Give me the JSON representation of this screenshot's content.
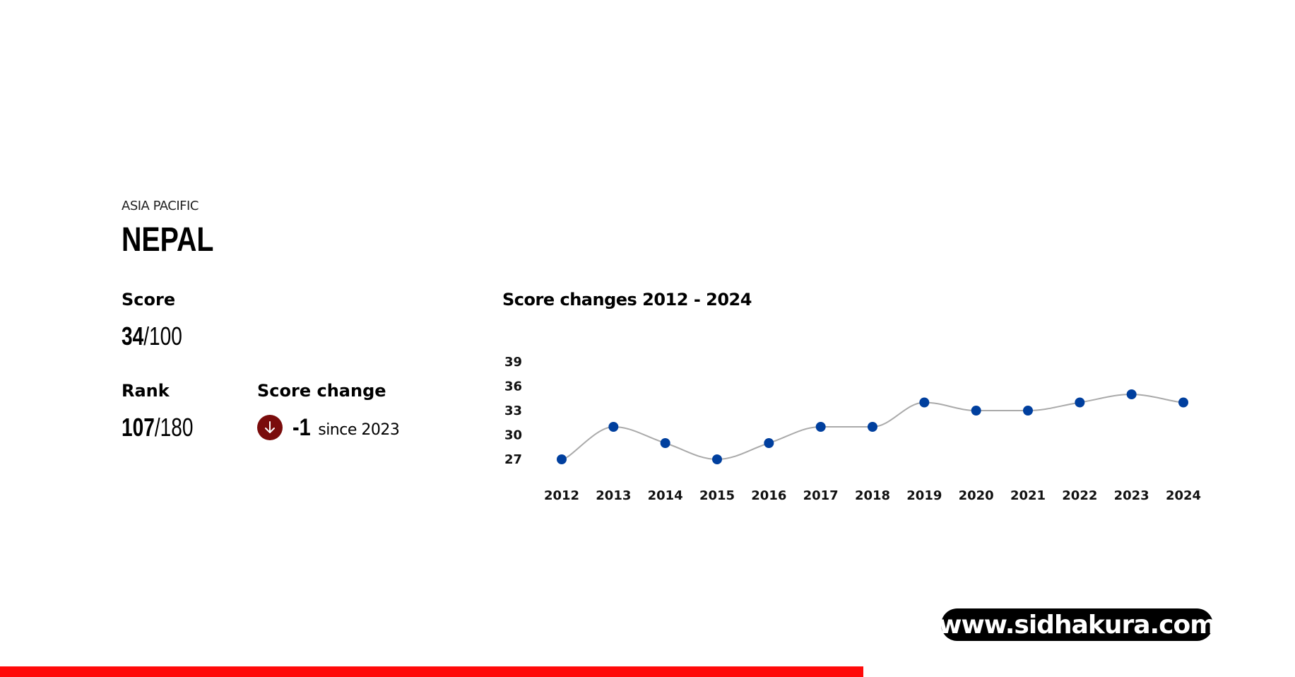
{
  "region": "ASIA PACIFIC",
  "country": "NEPAL",
  "score": {
    "label": "Score",
    "value": "34",
    "total": "/100"
  },
  "rank": {
    "label": "Rank",
    "value": "107",
    "total": "/180"
  },
  "score_change": {
    "label": "Score change",
    "value": "-1",
    "since": "since 2023",
    "icon": "arrow-down-icon",
    "icon_color": "#7a0c0c"
  },
  "watermark": "www.sidhakura.com",
  "accent_color": "#ff0a0a",
  "chart_data": {
    "type": "line",
    "title": "Score changes 2012 - 2024",
    "xlabel": "",
    "ylabel": "",
    "x": [
      "2012",
      "2013",
      "2014",
      "2015",
      "2016",
      "2017",
      "2018",
      "2019",
      "2020",
      "2021",
      "2022",
      "2023",
      "2024"
    ],
    "series": [
      {
        "values": [
          27,
          31,
          29,
          27,
          29,
          31,
          31,
          34,
          33,
          33,
          34,
          35,
          34
        ],
        "color": "#003f9e",
        "line_color": "#aaaaaa"
      }
    ],
    "yticks": [
      "27",
      "30",
      "33",
      "36",
      "39"
    ],
    "ylim": [
      27,
      39
    ],
    "grid": false,
    "smooth": true
  }
}
